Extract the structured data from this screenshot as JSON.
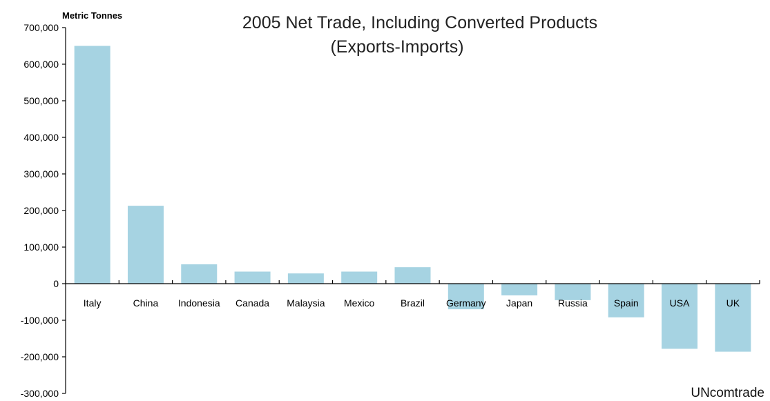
{
  "chart_data": {
    "type": "bar",
    "title": "2005 Net Trade, Including Converted Products",
    "subtitle": "(Exports-Imports)",
    "ylabel": "Metric Tonnes",
    "source": "UNcomtrade",
    "categories": [
      "Italy",
      "China",
      "Indonesia",
      "Canada",
      "Malaysia",
      "Mexico",
      "Brazil",
      "Germany",
      "Japan",
      "Russia",
      "Spain",
      "USA",
      "UK"
    ],
    "values": [
      650000,
      213000,
      53000,
      33000,
      28000,
      33000,
      45000,
      -70000,
      -32000,
      -45000,
      -92000,
      -178000,
      -186000
    ],
    "ylim": [
      -300000,
      700000
    ],
    "yticks": [
      700000,
      600000,
      500000,
      400000,
      300000,
      200000,
      100000,
      0,
      -100000,
      -200000,
      -300000
    ],
    "ytick_labels": [
      "700,000",
      "600,000",
      "500,000",
      "400,000",
      "300,000",
      "200,000",
      "100,000",
      "0",
      "-100,000",
      "-200,000",
      "-300,000"
    ],
    "bar_color": "#a6d3e2",
    "grid": false,
    "legend": "none"
  }
}
